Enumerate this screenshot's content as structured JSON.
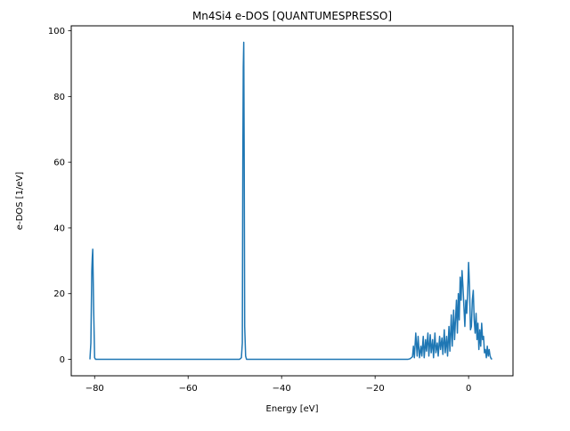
{
  "chart_data": {
    "type": "line",
    "title": "Mn4Si4 e-DOS [QUANTUMESPRESSO]",
    "xlabel": "Energy [eV]",
    "ylabel": "e-DOS [1/eV]",
    "xlim": [
      -85.0,
      9.5
    ],
    "ylim": [
      -5.0,
      101.5
    ],
    "xticks": [
      -80,
      -60,
      -40,
      -20,
      0
    ],
    "yticks": [
      0,
      20,
      40,
      60,
      80,
      100
    ],
    "grid": false,
    "legend": "none",
    "series": [
      {
        "color": "#1f77b4",
        "x": [
          -81.0,
          -80.8,
          -80.6,
          -80.5,
          -80.4,
          -80.2,
          -80.0,
          -79.8,
          -60.0,
          -49.0,
          -48.6,
          -48.4,
          -48.3,
          -48.2,
          -48.1,
          -48.0,
          -47.9,
          -47.7,
          -47.5,
          -40.0,
          -20.0,
          -13.0,
          -12.5,
          -12.0,
          -11.8,
          -11.6,
          -11.3,
          -11.0,
          -10.8,
          -10.5,
          -10.2,
          -10.0,
          -9.7,
          -9.5,
          -9.2,
          -9.0,
          -8.7,
          -8.5,
          -8.2,
          -8.0,
          -7.7,
          -7.5,
          -7.2,
          -7.0,
          -6.7,
          -6.5,
          -6.2,
          -6.0,
          -5.7,
          -5.5,
          -5.2,
          -5.0,
          -4.7,
          -4.5,
          -4.2,
          -4.0,
          -3.7,
          -3.5,
          -3.2,
          -3.0,
          -2.8,
          -2.6,
          -2.4,
          -2.2,
          -2.0,
          -1.8,
          -1.6,
          -1.4,
          -1.2,
          -1.0,
          -0.8,
          -0.6,
          -0.4,
          -0.2,
          0.0,
          0.2,
          0.4,
          0.6,
          0.8,
          1.0,
          1.2,
          1.4,
          1.6,
          1.8,
          2.0,
          2.2,
          2.4,
          2.6,
          2.8,
          3.0,
          3.2,
          3.4,
          3.6,
          3.8,
          4.0,
          4.2,
          4.4,
          4.6,
          4.8,
          5.0
        ],
        "y": [
          0.0,
          5.0,
          27.0,
          31.0,
          33.5,
          15.0,
          0.5,
          0.0,
          0.0,
          0.0,
          0.5,
          5.0,
          60.0,
          89.0,
          96.5,
          60.0,
          10.0,
          1.0,
          0.0,
          0.0,
          0.0,
          0.0,
          0.2,
          0.8,
          4.0,
          0.5,
          8.0,
          1.0,
          7.0,
          0.5,
          4.0,
          1.0,
          7.0,
          0.5,
          6.0,
          2.5,
          8.0,
          1.0,
          7.5,
          2.0,
          6.0,
          0.5,
          8.0,
          2.0,
          5.0,
          1.0,
          7.0,
          3.0,
          6.5,
          1.5,
          9.0,
          2.0,
          7.0,
          1.0,
          10.0,
          2.5,
          13.5,
          4.0,
          15.0,
          6.0,
          12.0,
          18.0,
          8.0,
          20.0,
          12.0,
          25.0,
          18.0,
          27.0,
          22.0,
          16.0,
          10.0,
          18.0,
          14.0,
          20.0,
          29.5,
          22.0,
          9.0,
          10.0,
          18.0,
          21.0,
          12.0,
          8.0,
          14.0,
          6.0,
          11.0,
          3.0,
          9.0,
          4.0,
          11.0,
          6.0,
          7.0,
          2.0,
          3.0,
          0.5,
          4.0,
          1.0,
          3.0,
          1.0,
          0.3,
          0.0
        ]
      }
    ]
  }
}
